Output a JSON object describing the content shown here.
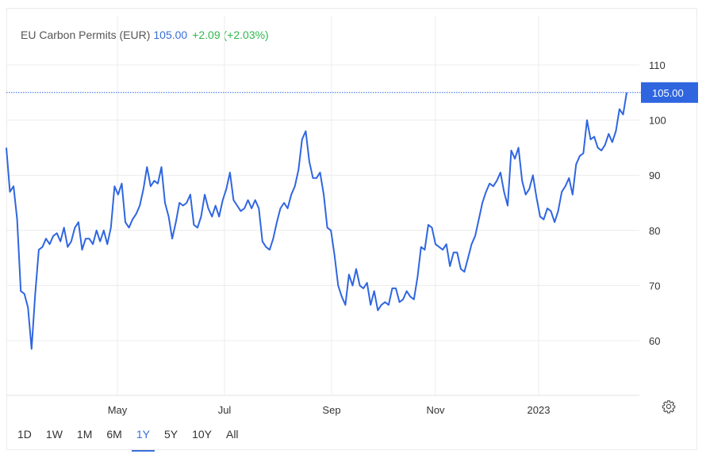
{
  "header": {
    "name": "EU Carbon Permits (EUR)",
    "price": "105.00",
    "change": "+2.09 (+2.03%)"
  },
  "price_tag": "105.00",
  "ranges": [
    {
      "label": "1D",
      "active": false
    },
    {
      "label": "1W",
      "active": false
    },
    {
      "label": "1M",
      "active": false
    },
    {
      "label": "6M",
      "active": false
    },
    {
      "label": "1Y",
      "active": true
    },
    {
      "label": "5Y",
      "active": false
    },
    {
      "label": "10Y",
      "active": false
    },
    {
      "label": "All",
      "active": false
    }
  ],
  "icons": {
    "settings": "gear-icon"
  },
  "colors": {
    "line": "#2f66e0",
    "price_tag": "#2f66e0",
    "change": "#2eb84c",
    "price": "#3a6fd8"
  },
  "chart_data": {
    "type": "line",
    "title": "EU Carbon Permits (EUR)",
    "xlabel": "",
    "ylabel": "",
    "grid": true,
    "ylim": [
      50,
      115
    ],
    "y_ticks": [
      60,
      70,
      80,
      90,
      100,
      110
    ],
    "x_ticks": [
      "May",
      "Jul",
      "Sep",
      "Nov",
      "2023"
    ],
    "last_value": 105.0,
    "series": [
      {
        "values": [
          95.0,
          87.0,
          88.0,
          82.0,
          69.0,
          68.5,
          66.0,
          58.5,
          68.5,
          76.5,
          77.0,
          78.5,
          77.5,
          79.0,
          79.5,
          78.0,
          80.5,
          77.0,
          78.0,
          80.5,
          81.5,
          76.5,
          78.5,
          78.5,
          77.5,
          80.0,
          78.0,
          80.0,
          77.5,
          80.5,
          88.0,
          86.5,
          88.5,
          81.5,
          80.5,
          82.0,
          83.0,
          84.5,
          87.5,
          91.5,
          88.0,
          89.0,
          88.5,
          91.5,
          85.0,
          82.5,
          78.5,
          81.5,
          85.0,
          84.5,
          85.0,
          86.5,
          81.0,
          80.5,
          82.5,
          86.5,
          84.0,
          82.5,
          84.5,
          82.5,
          85.5,
          87.5,
          90.5,
          85.5,
          84.5,
          83.5,
          84.0,
          85.5,
          84.0,
          85.5,
          84.0,
          78.0,
          77.0,
          76.5,
          78.5,
          81.5,
          84.0,
          85.0,
          84.0,
          86.5,
          88.0,
          91.0,
          96.5,
          98.0,
          92.5,
          89.5,
          89.5,
          90.5,
          86.5,
          80.5,
          80.0,
          75.5,
          70.0,
          68.0,
          66.5,
          72.0,
          70.0,
          73.0,
          70.0,
          69.5,
          70.5,
          66.5,
          69.0,
          65.5,
          66.5,
          67.0,
          66.5,
          69.5,
          69.5,
          67.0,
          67.5,
          69.0,
          68.0,
          67.5,
          71.5,
          77.0,
          76.5,
          81.0,
          80.5,
          77.5,
          77.0,
          76.5,
          77.5,
          73.5,
          76.0,
          76.0,
          73.0,
          72.5,
          75.0,
          77.5,
          79.0,
          82.0,
          85.0,
          87.0,
          88.5,
          88.0,
          89.0,
          90.5,
          87.0,
          84.5,
          94.5,
          93.0,
          95.0,
          89.0,
          86.5,
          87.5,
          90.0,
          86.0,
          82.5,
          82.0,
          84.0,
          83.5,
          81.5,
          83.5,
          87.0,
          88.0,
          89.5,
          86.5,
          92.0,
          93.5,
          94.0,
          100.0,
          96.5,
          97.0,
          95.0,
          94.5,
          95.5,
          97.5,
          96.0,
          98.0,
          102.0,
          101.0,
          105.0
        ]
      }
    ]
  }
}
